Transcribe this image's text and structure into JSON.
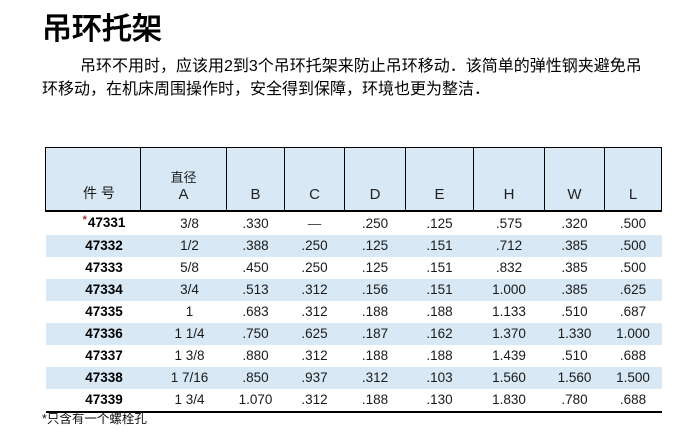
{
  "page": {
    "title": "吊环托架",
    "intro_lines": [
      "吊环不用时，应该用2到3个吊环托架来防止吊环移动．该简单的弹性钢夹避免吊",
      "环移动，在机床周围操作时，安全得到保障，环境也更为整洁．"
    ],
    "footnote": "*只含有一个螺栓孔"
  },
  "table": {
    "headers": [
      {
        "label": "件 号"
      },
      {
        "line1": "直径",
        "line2": "A"
      },
      {
        "label": "B"
      },
      {
        "label": "C"
      },
      {
        "label": "D"
      },
      {
        "label": "E"
      },
      {
        "label": "H"
      },
      {
        "label": "W"
      },
      {
        "label": "L"
      }
    ],
    "rows": [
      {
        "prefix": "*",
        "part": "47331",
        "values": [
          "3/8",
          ".330",
          "—",
          ".250",
          ".125",
          ".575",
          ".320",
          ".500"
        ]
      },
      {
        "prefix": "",
        "part": "47332",
        "values": [
          "1/2",
          ".388",
          ".250",
          ".125",
          ".151",
          ".712",
          ".385",
          ".500"
        ]
      },
      {
        "prefix": "",
        "part": "47333",
        "values": [
          "5/8",
          ".450",
          ".250",
          ".125",
          ".151",
          ".832",
          ".385",
          ".500"
        ]
      },
      {
        "prefix": "",
        "part": "47334",
        "values": [
          "3/4",
          ".513",
          ".312",
          ".156",
          ".151",
          "1.000",
          ".385",
          ".625"
        ]
      },
      {
        "prefix": "",
        "part": "47335",
        "values": [
          "1",
          ".683",
          ".312",
          ".188",
          ".188",
          "1.133",
          ".510",
          ".687"
        ]
      },
      {
        "prefix": "",
        "part": "47336",
        "values": [
          "1 1/4",
          ".750",
          ".625",
          ".187",
          ".162",
          "1.370",
          "1.330",
          "1.000"
        ]
      },
      {
        "prefix": "",
        "part": "47337",
        "values": [
          "1 3/8",
          ".880",
          ".312",
          ".188",
          ".188",
          "1.439",
          ".510",
          ".688"
        ]
      },
      {
        "prefix": "",
        "part": "47338",
        "values": [
          "1 7/16",
          ".850",
          ".937",
          ".312",
          ".103",
          "1.560",
          "1.560",
          "1.500"
        ]
      },
      {
        "prefix": "",
        "part": "47339",
        "values": [
          "1 3/4",
          "1.070",
          ".312",
          ".188",
          ".130",
          "1.830",
          ".780",
          ".688"
        ]
      }
    ]
  },
  "colors": {
    "band_blue": "#d8e8f5",
    "rule_black": "#000000",
    "asterisk_red": "#993333"
  }
}
